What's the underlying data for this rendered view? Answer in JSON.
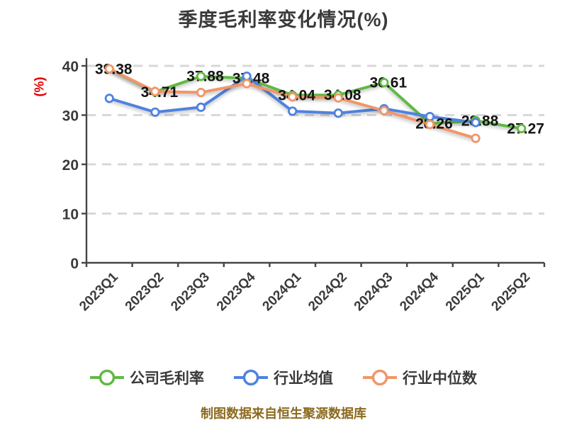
{
  "title": "季度毛利率变化情况(%)",
  "y_axis_label": "(%)",
  "source_note": "制图数据来自恒生聚源数据库",
  "colors": {
    "background": "#FFFFFF",
    "title": "#3A3A3A",
    "axis": "#454545",
    "tick_label": "#3A3A3A",
    "grid": "#D8D8D8",
    "data_label": "#141414",
    "y_axis_name": "#E60000",
    "source_note": "#8C6A1E",
    "company": "#61B944",
    "industry_avg": "#4F82DF",
    "industry_median": "#F0966A"
  },
  "chart_data": {
    "type": "line",
    "title": "季度毛利率变化情况(%)",
    "ylabel": "(%)",
    "xlabel": "",
    "categories": [
      "2023Q1",
      "2023Q2",
      "2023Q3",
      "2023Q4",
      "2024Q1",
      "2024Q2",
      "2024Q3",
      "2024Q4",
      "2025Q1",
      "2025Q2"
    ],
    "ylim": [
      0,
      40
    ],
    "yticks": [
      0,
      10,
      20,
      30,
      40
    ],
    "grid": "horizontal-dashed",
    "legend_position": "bottom",
    "series": [
      {
        "name": "公司毛利率",
        "color": "#61B944",
        "labels": true,
        "values": [
          39.38,
          34.71,
          37.88,
          37.48,
          34.04,
          34.08,
          36.61,
          28.26,
          28.88,
          27.27
        ]
      },
      {
        "name": "行业均值",
        "color": "#4F82DF",
        "labels": false,
        "values": [
          33.4,
          30.6,
          31.6,
          37.9,
          30.8,
          30.4,
          31.3,
          29.7,
          28.5,
          null
        ]
      },
      {
        "name": "行业中位数",
        "color": "#F0966A",
        "labels": false,
        "values": [
          39.4,
          34.8,
          34.6,
          36.4,
          33.7,
          33.5,
          30.9,
          28.1,
          25.3,
          null
        ]
      }
    ]
  }
}
